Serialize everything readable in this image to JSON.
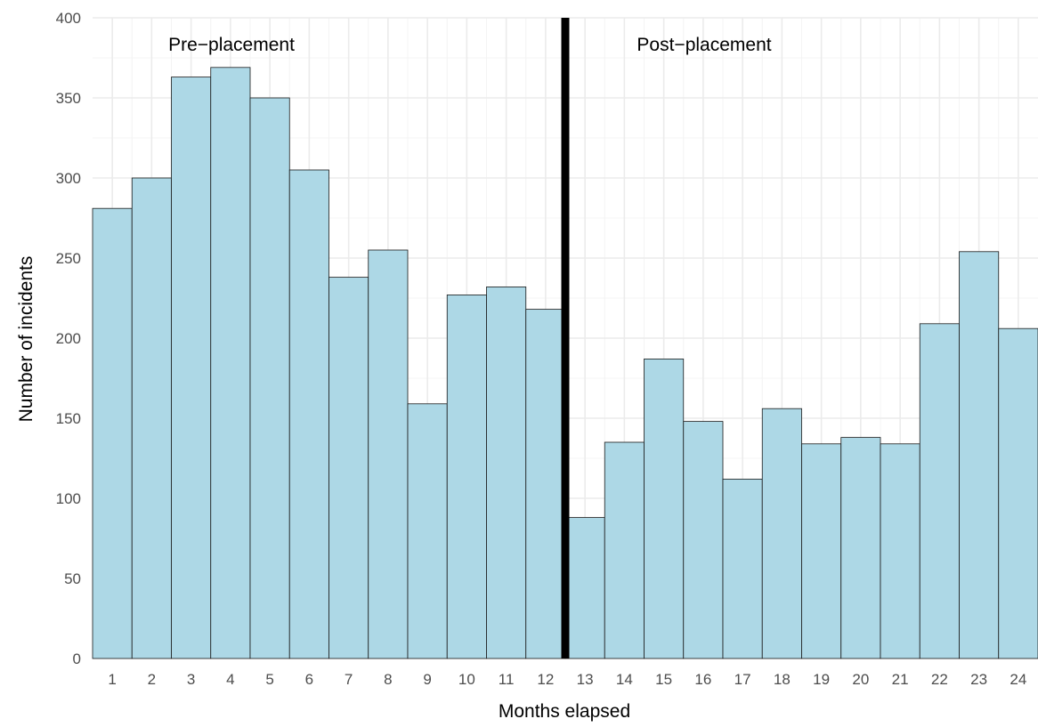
{
  "chart_data": {
    "type": "bar",
    "title": "",
    "xlabel": "Months elapsed",
    "ylabel": "Number of incidents",
    "categories": [
      "1",
      "2",
      "3",
      "4",
      "5",
      "6",
      "7",
      "8",
      "9",
      "10",
      "11",
      "12",
      "13",
      "14",
      "15",
      "16",
      "17",
      "18",
      "19",
      "20",
      "21",
      "22",
      "23",
      "24"
    ],
    "values": [
      281,
      300,
      363,
      369,
      350,
      305,
      238,
      255,
      159,
      227,
      232,
      218,
      88,
      135,
      187,
      148,
      112,
      156,
      134,
      138,
      134,
      209,
      254,
      206
    ],
    "ylim": [
      0,
      400
    ],
    "yticks": [
      0,
      50,
      100,
      150,
      200,
      250,
      300,
      350,
      400
    ],
    "grid": true,
    "legend": "none",
    "divider_after_category": "12",
    "annotations": [
      "Pre−placement",
      "Post−placement"
    ],
    "colors": {
      "bar_fill": "#add8e6",
      "bar_stroke": "#1a1a1a",
      "grid_major": "#ebebeb",
      "grid_minor": "#f4f4f4",
      "divider": "#000000"
    }
  }
}
